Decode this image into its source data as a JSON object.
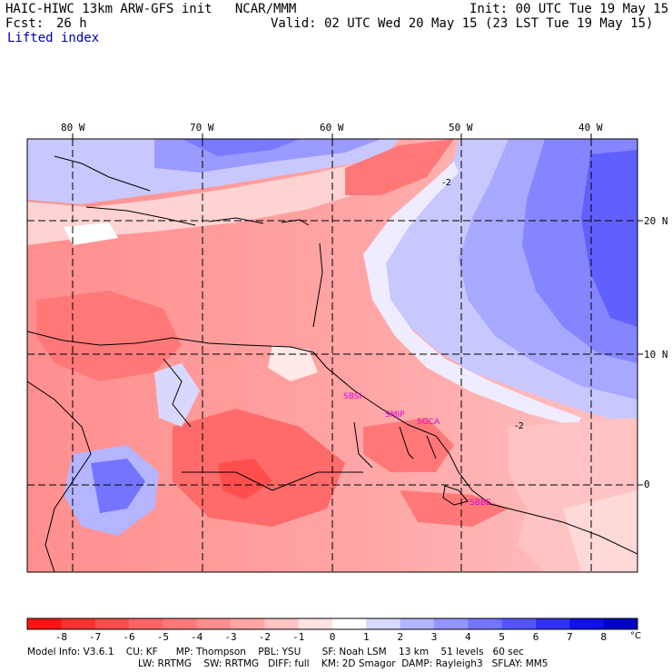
{
  "header": {
    "title": "HAIC-HIWC 13km ARW-GFS init   NCAR/MMM",
    "init": "Init: 00 UTC Tue 19 May 15",
    "fcst_label": "Fcst:",
    "fcst_value": "26 h",
    "valid": "Valid: 02 UTC Wed 20 May 15 (23 LST Tue 19 May 15)",
    "field": "Lifted index"
  },
  "map": {
    "lon_labels": [
      "80 W",
      "70 W",
      "60 W",
      "50 W",
      "40 W"
    ],
    "lat_labels": [
      "20 N",
      "10 N",
      "0"
    ],
    "contour_labels": [
      "-2",
      "-2"
    ],
    "stations": [
      "SBSI",
      "SMJP",
      "SGCA",
      "SBBE"
    ]
  },
  "colorbar": {
    "labels": [
      "-8",
      "-7",
      "-6",
      "-5",
      "-4",
      "-3",
      "-2",
      "-1",
      "0",
      "1",
      "2",
      "3",
      "4",
      "5",
      "6",
      "7",
      "8"
    ],
    "unit": "°C",
    "colors": [
      "#ff1414",
      "#ff3232",
      "#ff4e4e",
      "#ff6464",
      "#ff7878",
      "#ff8e8e",
      "#ffa5a5",
      "#ffc3c3",
      "#ffe2e2",
      "#ffffff",
      "#d8d8ff",
      "#b4b4ff",
      "#9494ff",
      "#7474ff",
      "#5454ff",
      "#3030f8",
      "#1010e8",
      "#0000c8"
    ]
  },
  "footer": {
    "line1": "Model Info: V3.6.1    CU: KF      MP: Thompson    PBL: YSU       SF: Noah LSM    13 km    51 levels   60 sec",
    "line2": "LW: RRTMG    SW: RRTMG   DIFF: full    KM: 2D Smagor  DAMP: Rayleigh3   SFLAY: MM5"
  }
}
